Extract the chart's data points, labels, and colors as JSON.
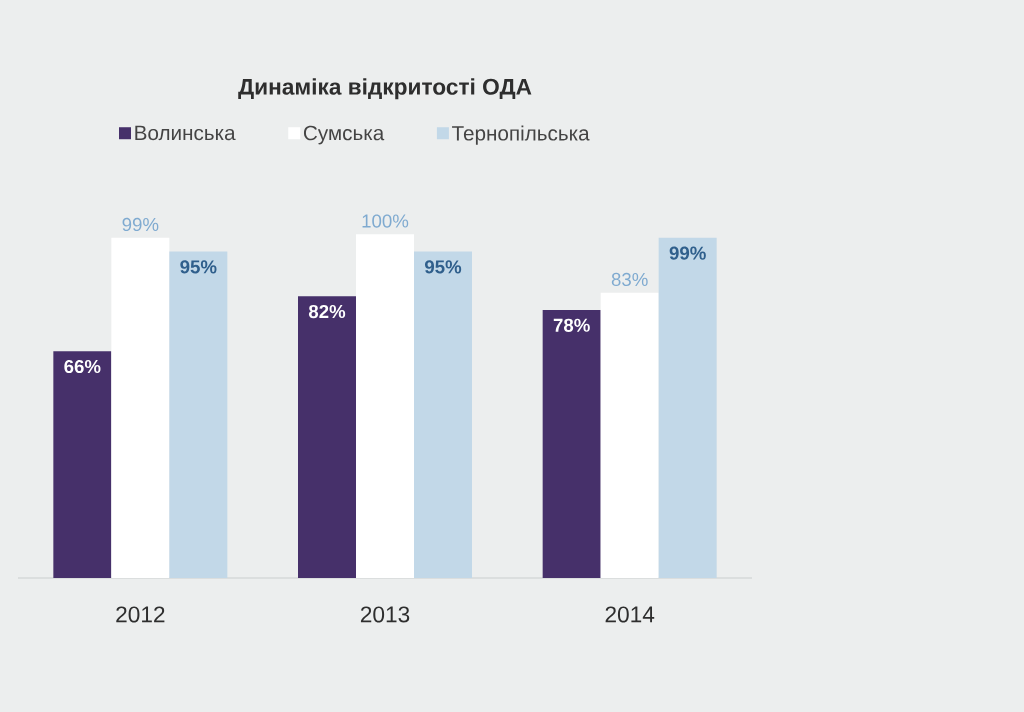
{
  "chart_data": {
    "type": "bar",
    "title": "Динаміка відкритості ОДА",
    "categories": [
      "2012",
      "2013",
      "2014"
    ],
    "series": [
      {
        "name": "Волинська",
        "color": "#46306a",
        "values": [
          66,
          82,
          78
        ],
        "value_labels": [
          "66%",
          "82%",
          "78%"
        ]
      },
      {
        "name": "Сумська",
        "color": "#ffffff",
        "values": [
          99,
          100,
          83
        ],
        "value_labels": [
          "99%",
          "100%",
          "83%"
        ]
      },
      {
        "name": "Тернопільська",
        "color": "#c2d8e8",
        "values": [
          95,
          95,
          99
        ],
        "value_labels": [
          "95%",
          "95%",
          "99%"
        ]
      }
    ],
    "legend": "top"
  }
}
